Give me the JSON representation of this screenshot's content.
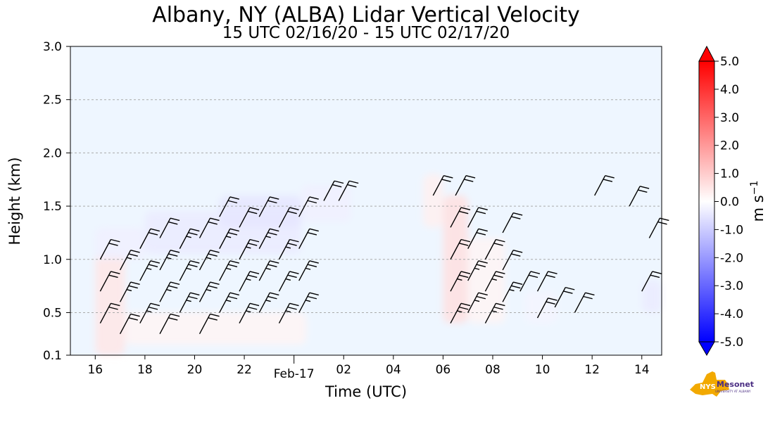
{
  "chart_data": {
    "type": "heatmap",
    "title": "Albany, NY (ALBA) Lidar Vertical Velocity",
    "subtitle": "15 UTC 02/16/20 - 15 UTC 02/17/20",
    "xlabel": "Time (UTC)",
    "ylabel": "Height (km)",
    "xlim": [
      15.0,
      38.8
    ],
    "ylim": [
      0.1,
      3.0
    ],
    "x_ticks": [
      {
        "value": 16,
        "label": "16"
      },
      {
        "value": 18,
        "label": "18"
      },
      {
        "value": 20,
        "label": "20"
      },
      {
        "value": 22,
        "label": "22"
      },
      {
        "value": 26,
        "label": "02"
      },
      {
        "value": 28,
        "label": "04"
      },
      {
        "value": 30,
        "label": "06"
      },
      {
        "value": 32,
        "label": "08"
      },
      {
        "value": 34,
        "label": "10"
      },
      {
        "value": 36,
        "label": "12"
      },
      {
        "value": 38,
        "label": "14"
      }
    ],
    "date_tick": {
      "value": 24,
      "label": "Feb-17"
    },
    "y_ticks": [
      {
        "value": 0.1,
        "label": "0.1"
      },
      {
        "value": 0.5,
        "label": "0.5"
      },
      {
        "value": 1.0,
        "label": "1.0"
      },
      {
        "value": 1.5,
        "label": "1.5"
      },
      {
        "value": 2.0,
        "label": "2.0"
      },
      {
        "value": 2.5,
        "label": "2.5"
      },
      {
        "value": 3.0,
        "label": "3.0"
      }
    ],
    "grid": "horizontal dashed",
    "background_color": "#eef6ff",
    "colorbar": {
      "label": "m s",
      "label_exponent": "−1",
      "range": [
        -5.0,
        5.0
      ],
      "extend": "both",
      "ticks": [
        "5.0",
        "4.0",
        "3.0",
        "2.0",
        "1.0",
        "0.0",
        "-1.0",
        "-2.0",
        "-3.0",
        "-4.0",
        "-5.0"
      ],
      "colors": {
        "low": "#0000ff",
        "mid": "#ffffff",
        "high": "#ff0000"
      }
    },
    "data_regions": [
      {
        "t0": 16.0,
        "t1": 17.2,
        "h0": 0.1,
        "h1": 1.05,
        "w": 0.5
      },
      {
        "t0": 16.0,
        "t1": 18.0,
        "h0": 1.0,
        "h1": 1.3,
        "w": -0.3
      },
      {
        "t0": 17.2,
        "t1": 24.5,
        "h0": 0.2,
        "h1": 0.5,
        "w": 0.2
      },
      {
        "t0": 18.0,
        "t1": 24.3,
        "h0": 1.05,
        "h1": 1.45,
        "w": -0.4
      },
      {
        "t0": 21.0,
        "t1": 24.3,
        "h0": 1.3,
        "h1": 1.6,
        "w": -0.5
      },
      {
        "t0": 24.3,
        "t1": 26.3,
        "h0": 1.35,
        "h1": 1.7,
        "w": -0.3
      },
      {
        "t0": 29.2,
        "t1": 30.0,
        "h0": 1.3,
        "h1": 1.8,
        "w": 0.3
      },
      {
        "t0": 30.0,
        "t1": 31.0,
        "h0": 0.4,
        "h1": 1.6,
        "w": 0.6
      },
      {
        "t0": 31.0,
        "t1": 32.5,
        "h0": 0.4,
        "h1": 1.2,
        "w": 0.2
      },
      {
        "t0": 33.3,
        "t1": 34.6,
        "h0": 0.4,
        "h1": 0.7,
        "w": -0.2
      },
      {
        "t0": 38.0,
        "t1": 38.8,
        "h0": 0.5,
        "h1": 0.8,
        "w": -0.4
      }
    ],
    "wind_barbs": [
      {
        "t": 16.2,
        "h": 0.4,
        "n": 2
      },
      {
        "t": 16.2,
        "h": 0.7,
        "n": 2
      },
      {
        "t": 16.2,
        "h": 1.0,
        "n": 2
      },
      {
        "t": 17.0,
        "h": 0.3,
        "n": 2
      },
      {
        "t": 17.0,
        "h": 0.6,
        "n": 3
      },
      {
        "t": 17.0,
        "h": 0.9,
        "n": 3
      },
      {
        "t": 17.8,
        "h": 0.4,
        "n": 3
      },
      {
        "t": 17.8,
        "h": 0.8,
        "n": 3
      },
      {
        "t": 17.8,
        "h": 1.1,
        "n": 2
      },
      {
        "t": 18.6,
        "h": 0.3,
        "n": 2
      },
      {
        "t": 18.6,
        "h": 0.6,
        "n": 3
      },
      {
        "t": 18.6,
        "h": 0.9,
        "n": 3
      },
      {
        "t": 18.6,
        "h": 1.2,
        "n": 2
      },
      {
        "t": 19.4,
        "h": 0.5,
        "n": 3
      },
      {
        "t": 19.4,
        "h": 0.8,
        "n": 3
      },
      {
        "t": 19.4,
        "h": 1.1,
        "n": 3
      },
      {
        "t": 20.2,
        "h": 0.3,
        "n": 2
      },
      {
        "t": 20.2,
        "h": 0.6,
        "n": 3
      },
      {
        "t": 20.2,
        "h": 0.9,
        "n": 3
      },
      {
        "t": 20.2,
        "h": 1.2,
        "n": 2
      },
      {
        "t": 21.0,
        "h": 0.5,
        "n": 3
      },
      {
        "t": 21.0,
        "h": 0.8,
        "n": 3
      },
      {
        "t": 21.0,
        "h": 1.1,
        "n": 3
      },
      {
        "t": 21.0,
        "h": 1.4,
        "n": 2
      },
      {
        "t": 21.8,
        "h": 0.4,
        "n": 3
      },
      {
        "t": 21.8,
        "h": 0.7,
        "n": 3
      },
      {
        "t": 21.8,
        "h": 1.0,
        "n": 3
      },
      {
        "t": 21.8,
        "h": 1.3,
        "n": 2
      },
      {
        "t": 22.6,
        "h": 0.5,
        "n": 3
      },
      {
        "t": 22.6,
        "h": 0.8,
        "n": 3
      },
      {
        "t": 22.6,
        "h": 1.1,
        "n": 3
      },
      {
        "t": 22.6,
        "h": 1.4,
        "n": 2
      },
      {
        "t": 23.4,
        "h": 0.4,
        "n": 3
      },
      {
        "t": 23.4,
        "h": 0.7,
        "n": 3
      },
      {
        "t": 23.4,
        "h": 1.0,
        "n": 3
      },
      {
        "t": 23.4,
        "h": 1.3,
        "n": 2
      },
      {
        "t": 24.2,
        "h": 0.5,
        "n": 3
      },
      {
        "t": 24.2,
        "h": 0.8,
        "n": 3
      },
      {
        "t": 24.2,
        "h": 1.1,
        "n": 2
      },
      {
        "t": 24.2,
        "h": 1.4,
        "n": 2
      },
      {
        "t": 25.2,
        "h": 1.55,
        "n": 2
      },
      {
        "t": 25.8,
        "h": 1.55,
        "n": 2
      },
      {
        "t": 29.6,
        "h": 1.6,
        "n": 2
      },
      {
        "t": 30.5,
        "h": 1.6,
        "n": 2
      },
      {
        "t": 30.3,
        "h": 0.4,
        "n": 3
      },
      {
        "t": 30.3,
        "h": 0.7,
        "n": 3
      },
      {
        "t": 30.3,
        "h": 1.0,
        "n": 2
      },
      {
        "t": 30.3,
        "h": 1.3,
        "n": 2
      },
      {
        "t": 31.0,
        "h": 0.5,
        "n": 3
      },
      {
        "t": 31.0,
        "h": 0.8,
        "n": 3
      },
      {
        "t": 31.0,
        "h": 1.1,
        "n": 2
      },
      {
        "t": 31.0,
        "h": 1.3,
        "n": 2
      },
      {
        "t": 31.7,
        "h": 0.4,
        "n": 3
      },
      {
        "t": 31.7,
        "h": 0.7,
        "n": 3
      },
      {
        "t": 31.7,
        "h": 1.0,
        "n": 2
      },
      {
        "t": 32.4,
        "h": 0.6,
        "n": 3
      },
      {
        "t": 32.4,
        "h": 0.9,
        "n": 2
      },
      {
        "t": 32.4,
        "h": 1.25,
        "n": 2
      },
      {
        "t": 33.1,
        "h": 0.7,
        "n": 2
      },
      {
        "t": 33.8,
        "h": 0.45,
        "n": 2
      },
      {
        "t": 33.8,
        "h": 0.7,
        "n": 2
      },
      {
        "t": 34.5,
        "h": 0.55,
        "n": 2
      },
      {
        "t": 35.3,
        "h": 0.5,
        "n": 2
      },
      {
        "t": 36.1,
        "h": 1.6,
        "n": 2
      },
      {
        "t": 37.5,
        "h": 1.5,
        "n": 2
      },
      {
        "t": 38.3,
        "h": 1.2,
        "n": 2
      },
      {
        "t": 38.0,
        "h": 0.7,
        "n": 2
      }
    ]
  },
  "logo": {
    "text": "NYS",
    "wordmark": "Mesonet",
    "tagline": "UNIVERSITY AT ALBANY"
  }
}
